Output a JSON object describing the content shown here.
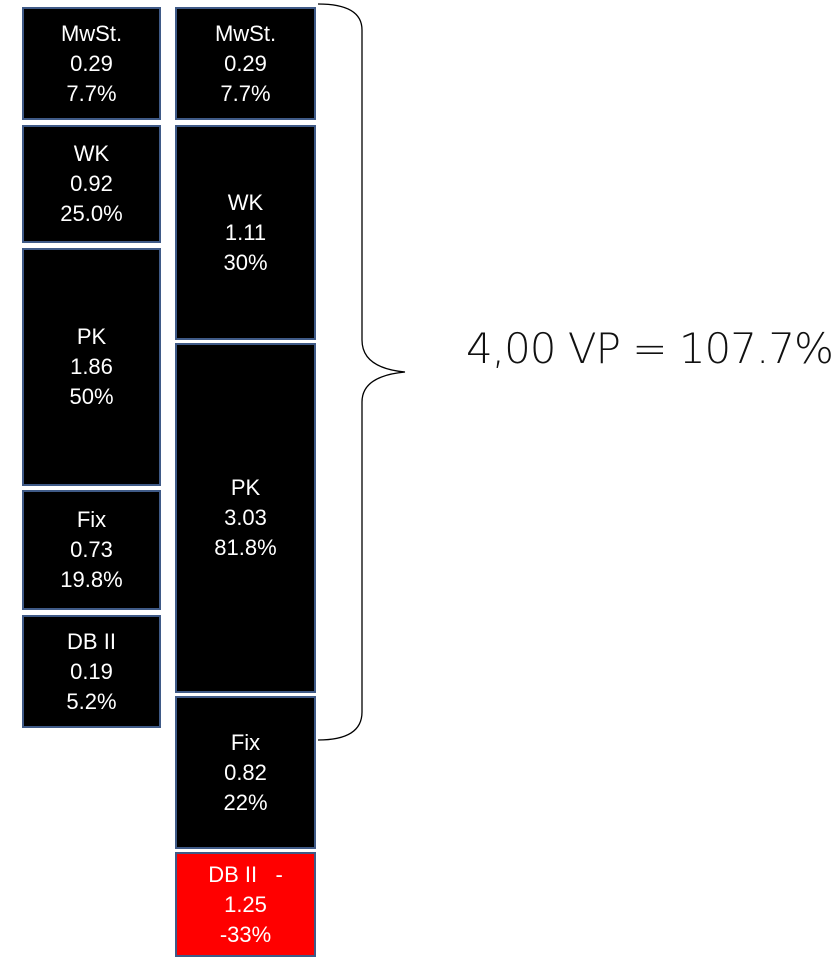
{
  "left_stack": {
    "blocks": [
      {
        "name": "MwSt.",
        "value": "0.29",
        "percent": "7.7%",
        "color": "#000000"
      },
      {
        "name": "WK",
        "value": "0.92",
        "percent": "25.0%",
        "color": "#000000"
      },
      {
        "name": "PK",
        "value": "1.86",
        "percent": "50%",
        "color": "#000000"
      },
      {
        "name": "Fix",
        "value": "0.73",
        "percent": "19.8%",
        "color": "#000000"
      },
      {
        "name": "DB II",
        "value": "0.19",
        "percent": "5.2%",
        "color": "#000000"
      }
    ]
  },
  "right_stack": {
    "blocks": [
      {
        "name": "MwSt.",
        "value": "0.29",
        "percent": "7.7%",
        "color": "#000000"
      },
      {
        "name": "WK",
        "value": "1.11",
        "percent": "30%",
        "color": "#000000"
      },
      {
        "name": "PK",
        "value": "3.03",
        "percent": "81.8%",
        "color": "#000000"
      },
      {
        "name": "Fix",
        "value": "0.82",
        "percent": "22%",
        "color": "#000000"
      },
      {
        "name": "DB II   -",
        "value": "1.25",
        "percent": "-33%",
        "color": "#ff0000"
      }
    ]
  },
  "total_label": "4,00 VP = 107.7%",
  "colors": {
    "block_fill": "#000000",
    "negative_fill": "#ff0000",
    "block_border": "#3f5a87",
    "text": "#ffffff"
  }
}
